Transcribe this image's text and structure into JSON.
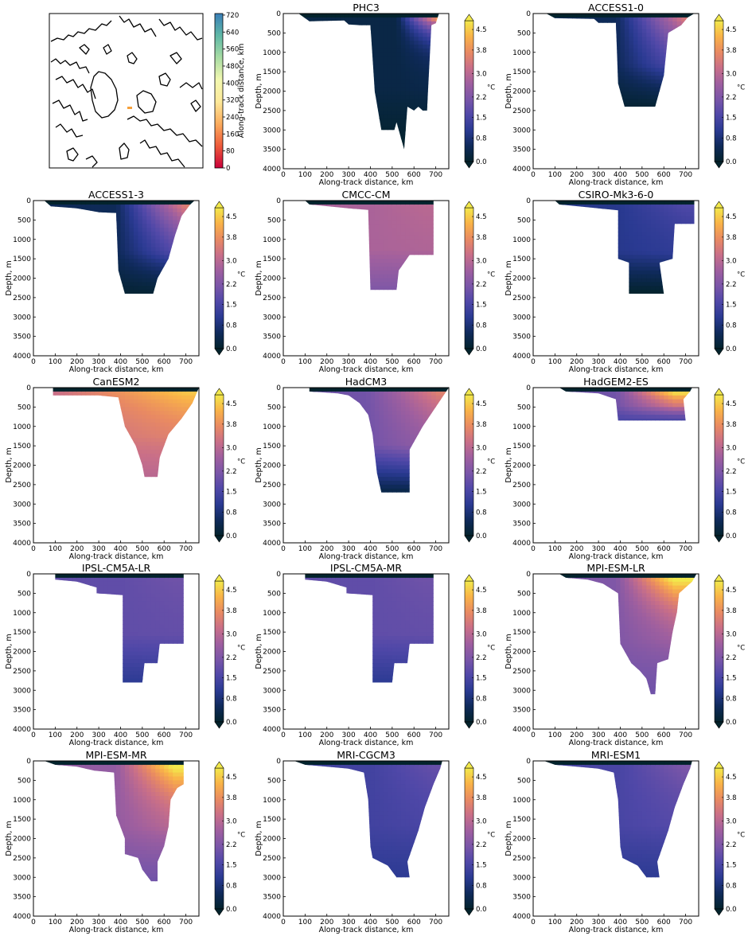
{
  "map_panel": {
    "colorbar_label": "Along-track distance, km",
    "colorbar_ticks": [
      "0",
      "80",
      "160",
      "240",
      "320",
      "400",
      "480",
      "560",
      "640",
      "720"
    ]
  },
  "colorbar": {
    "unit": "°C",
    "ticks": [
      "0.0",
      "0.8",
      "1.5",
      "2.2",
      "3.0",
      "3.8",
      "4.5"
    ],
    "colors": [
      "#03232c",
      "#0f2a5a",
      "#2a3a92",
      "#5048a8",
      "#7a56a8",
      "#9f5f9f",
      "#c96f88",
      "#e98a62",
      "#f9b348",
      "#f2e94c"
    ]
  },
  "axes": {
    "xlabel": "Along-track distance, km",
    "ylabel": "Depth, m",
    "xticks": [
      "0",
      "100",
      "200",
      "300",
      "400",
      "500",
      "600",
      "700"
    ],
    "yticks": [
      "0",
      "500",
      "1000",
      "1500",
      "2000",
      "2500",
      "3000",
      "3500",
      "4000"
    ]
  },
  "chart_data": [
    {
      "type": "heatmap",
      "title": "PHC3",
      "xlim": [
        0,
        760
      ],
      "ylim": [
        4000,
        0
      ],
      "max_depth": 3500,
      "profile": [
        [
          70,
          0
        ],
        [
          120,
          200
        ],
        [
          280,
          180
        ],
        [
          300,
          280
        ],
        [
          350,
          300
        ],
        [
          400,
          300
        ],
        [
          420,
          2000
        ],
        [
          450,
          3000
        ],
        [
          510,
          3000
        ],
        [
          520,
          2800
        ],
        [
          555,
          3500
        ],
        [
          570,
          2400
        ],
        [
          600,
          2500
        ],
        [
          620,
          2400
        ],
        [
          640,
          2500
        ],
        [
          660,
          2500
        ],
        [
          680,
          300
        ],
        [
          700,
          250
        ],
        [
          715,
          0
        ]
      ],
      "warm": {
        "x0": 520,
        "d0": 0.3,
        "xc": 710,
        "top": 4.2,
        "depth": 450
      },
      "deep_value": 0.0
    },
    {
      "type": "heatmap",
      "title": "ACCESS1-0",
      "xlim": [
        0,
        760
      ],
      "ylim": [
        4000,
        0
      ],
      "max_depth": 2400,
      "profile": [
        [
          60,
          0
        ],
        [
          100,
          120
        ],
        [
          280,
          140
        ],
        [
          300,
          240
        ],
        [
          380,
          240
        ],
        [
          390,
          1800
        ],
        [
          420,
          2400
        ],
        [
          560,
          2400
        ],
        [
          600,
          1600
        ],
        [
          620,
          500
        ],
        [
          680,
          300
        ],
        [
          710,
          100
        ],
        [
          740,
          0
        ]
      ],
      "warm": {
        "x0": 380,
        "d0": 0.5,
        "xc": 700,
        "top": 3.5,
        "depth": 1500
      },
      "deep_value": 0.1
    },
    {
      "type": "heatmap",
      "title": "ACCESS1-3",
      "xlim": [
        0,
        760
      ],
      "ylim": [
        4000,
        0
      ],
      "max_depth": 2400,
      "profile": [
        [
          50,
          0
        ],
        [
          80,
          150
        ],
        [
          200,
          200
        ],
        [
          300,
          300
        ],
        [
          380,
          320
        ],
        [
          390,
          1800
        ],
        [
          420,
          2400
        ],
        [
          550,
          2400
        ],
        [
          570,
          2000
        ],
        [
          620,
          1500
        ],
        [
          650,
          900
        ],
        [
          680,
          400
        ],
        [
          720,
          100
        ],
        [
          740,
          0
        ]
      ],
      "warm": {
        "x0": 380,
        "d0": 0.5,
        "xc": 700,
        "top": 3.6,
        "depth": 1500
      },
      "deep_value": 0.1
    },
    {
      "type": "heatmap",
      "title": "CMCC-CM",
      "xlim": [
        0,
        760
      ],
      "ylim": [
        4000,
        0
      ],
      "max_depth": 2300,
      "profile": [
        [
          100,
          0
        ],
        [
          120,
          100
        ],
        [
          300,
          200
        ],
        [
          390,
          240
        ],
        [
          400,
          2300
        ],
        [
          520,
          2300
        ],
        [
          530,
          1800
        ],
        [
          580,
          1400
        ],
        [
          690,
          1400
        ],
        [
          690,
          0
        ]
      ],
      "warm": {
        "x0": 400,
        "d0": 2.8,
        "xc": 650,
        "top": 3.0,
        "depth": 1000
      },
      "deep_value": 2.2
    },
    {
      "type": "heatmap",
      "title": "CSIRO-Mk3-6-0",
      "xlim": [
        0,
        760
      ],
      "ylim": [
        4000,
        0
      ],
      "max_depth": 2400,
      "profile": [
        [
          100,
          0
        ],
        [
          120,
          100
        ],
        [
          300,
          200
        ],
        [
          390,
          250
        ],
        [
          390,
          1500
        ],
        [
          440,
          1600
        ],
        [
          440,
          2400
        ],
        [
          600,
          2400
        ],
        [
          580,
          1600
        ],
        [
          640,
          1500
        ],
        [
          650,
          600
        ],
        [
          740,
          600
        ],
        [
          740,
          0
        ]
      ],
      "warm": {
        "x0": 380,
        "d0": 1.0,
        "xc": 700,
        "top": 1.6,
        "depth": 1000
      },
      "deep_value": 0.0
    },
    {
      "type": "heatmap",
      "title": "CanESM2",
      "xlim": [
        0,
        760
      ],
      "ylim": [
        4000,
        0
      ],
      "max_depth": 2300,
      "profile": [
        [
          90,
          0
        ],
        [
          90,
          200
        ],
        [
          300,
          200
        ],
        [
          390,
          250
        ],
        [
          420,
          1000
        ],
        [
          470,
          1500
        ],
        [
          500,
          2000
        ],
        [
          510,
          2300
        ],
        [
          570,
          2300
        ],
        [
          580,
          1800
        ],
        [
          620,
          1200
        ],
        [
          680,
          800
        ],
        [
          730,
          400
        ],
        [
          760,
          0
        ]
      ],
      "warm": {
        "x0": 100,
        "d0": 3.2,
        "xc": 700,
        "top": 4.5,
        "depth": 1000
      },
      "deep_value": 3.0
    },
    {
      "type": "heatmap",
      "title": "HadCM3",
      "xlim": [
        0,
        760
      ],
      "ylim": [
        4000,
        0
      ],
      "max_depth": 2700,
      "profile": [
        [
          120,
          0
        ],
        [
          120,
          100
        ],
        [
          250,
          150
        ],
        [
          300,
          200
        ],
        [
          350,
          400
        ],
        [
          390,
          700
        ],
        [
          410,
          1200
        ],
        [
          430,
          2200
        ],
        [
          450,
          2700
        ],
        [
          580,
          2700
        ],
        [
          580,
          1600
        ],
        [
          640,
          1000
        ],
        [
          700,
          500
        ],
        [
          760,
          0
        ]
      ],
      "warm": {
        "x0": 380,
        "d0": 2.0,
        "xc": 720,
        "top": 3.6,
        "depth": 1400
      },
      "deep_value": 0.3
    },
    {
      "type": "heatmap",
      "title": "HadGEM2-ES",
      "xlim": [
        0,
        760
      ],
      "ylim": [
        4000,
        0
      ],
      "max_depth": 850,
      "profile": [
        [
          120,
          0
        ],
        [
          150,
          100
        ],
        [
          300,
          150
        ],
        [
          380,
          300
        ],
        [
          390,
          850
        ],
        [
          700,
          850
        ],
        [
          690,
          300
        ],
        [
          720,
          100
        ],
        [
          730,
          0
        ]
      ],
      "warm": {
        "x0": 380,
        "d0": 2.0,
        "xc": 650,
        "top": 4.8,
        "depth": 500
      },
      "deep_value": 1.5
    },
    {
      "type": "heatmap",
      "title": "IPSL-CM5A-LR",
      "xlim": [
        0,
        760
      ],
      "ylim": [
        4000,
        0
      ],
      "max_depth": 2800,
      "profile": [
        [
          100,
          0
        ],
        [
          100,
          150
        ],
        [
          200,
          200
        ],
        [
          290,
          350
        ],
        [
          290,
          500
        ],
        [
          410,
          550
        ],
        [
          410,
          2800
        ],
        [
          500,
          2800
        ],
        [
          510,
          2300
        ],
        [
          570,
          2300
        ],
        [
          580,
          1800
        ],
        [
          690,
          1800
        ],
        [
          690,
          0
        ]
      ],
      "warm": {
        "x0": 400,
        "d0": 1.8,
        "xc": 650,
        "top": 2.0,
        "depth": 1000
      },
      "deep_value": 1.1
    },
    {
      "type": "heatmap",
      "title": "IPSL-CM5A-MR",
      "xlim": [
        0,
        760
      ],
      "ylim": [
        4000,
        0
      ],
      "max_depth": 2800,
      "profile": [
        [
          100,
          0
        ],
        [
          100,
          150
        ],
        [
          200,
          200
        ],
        [
          290,
          350
        ],
        [
          290,
          500
        ],
        [
          410,
          550
        ],
        [
          410,
          2800
        ],
        [
          500,
          2800
        ],
        [
          510,
          2300
        ],
        [
          570,
          2300
        ],
        [
          580,
          1800
        ],
        [
          690,
          1800
        ],
        [
          690,
          0
        ]
      ],
      "warm": {
        "x0": 400,
        "d0": 1.8,
        "xc": 650,
        "top": 2.0,
        "depth": 1000
      },
      "deep_value": 1.1
    },
    {
      "type": "heatmap",
      "title": "MPI-ESM-LR",
      "xlim": [
        0,
        760
      ],
      "ylim": [
        4000,
        0
      ],
      "max_depth": 3100,
      "profile": [
        [
          120,
          0
        ],
        [
          150,
          100
        ],
        [
          250,
          150
        ],
        [
          320,
          250
        ],
        [
          390,
          500
        ],
        [
          400,
          1800
        ],
        [
          450,
          2300
        ],
        [
          490,
          2500
        ],
        [
          520,
          2700
        ],
        [
          540,
          3100
        ],
        [
          560,
          3100
        ],
        [
          570,
          2300
        ],
        [
          620,
          2200
        ],
        [
          640,
          1500
        ],
        [
          660,
          1000
        ],
        [
          670,
          500
        ],
        [
          730,
          200
        ],
        [
          750,
          0
        ]
      ],
      "warm": {
        "x0": 380,
        "d0": 2.2,
        "xc": 650,
        "top": 5.0,
        "depth": 900
      },
      "deep_value": 2.0
    },
    {
      "type": "heatmap",
      "title": "MPI-ESM-MR",
      "xlim": [
        0,
        760
      ],
      "ylim": [
        4000,
        0
      ],
      "max_depth": 3100,
      "profile": [
        [
          50,
          0
        ],
        [
          100,
          100
        ],
        [
          200,
          150
        ],
        [
          280,
          250
        ],
        [
          370,
          300
        ],
        [
          380,
          1400
        ],
        [
          420,
          2000
        ],
        [
          420,
          2400
        ],
        [
          480,
          2500
        ],
        [
          500,
          2800
        ],
        [
          540,
          3100
        ],
        [
          570,
          3100
        ],
        [
          570,
          2600
        ],
        [
          600,
          2200
        ],
        [
          620,
          1700
        ],
        [
          630,
          1000
        ],
        [
          660,
          700
        ],
        [
          690,
          600
        ],
        [
          690,
          0
        ]
      ],
      "warm": {
        "x0": 380,
        "d0": 2.5,
        "xc": 650,
        "top": 5.0,
        "depth": 1000
      },
      "deep_value": 2.0
    },
    {
      "type": "heatmap",
      "title": "MRI-CGCM3",
      "xlim": [
        0,
        760
      ],
      "ylim": [
        4000,
        0
      ],
      "max_depth": 3000,
      "profile": [
        [
          50,
          0
        ],
        [
          100,
          100
        ],
        [
          200,
          150
        ],
        [
          300,
          200
        ],
        [
          370,
          300
        ],
        [
          390,
          1000
        ],
        [
          400,
          2200
        ],
        [
          410,
          2500
        ],
        [
          480,
          2700
        ],
        [
          520,
          3000
        ],
        [
          580,
          3000
        ],
        [
          570,
          2600
        ],
        [
          620,
          1800
        ],
        [
          650,
          1200
        ],
        [
          690,
          600
        ],
        [
          720,
          200
        ],
        [
          730,
          0
        ]
      ],
      "warm": {
        "x0": 400,
        "d0": 1.4,
        "xc": 700,
        "top": 1.9,
        "depth": 1200
      },
      "deep_value": 1.1
    },
    {
      "type": "heatmap",
      "title": "MRI-ESM1",
      "xlim": [
        0,
        760
      ],
      "ylim": [
        4000,
        0
      ],
      "max_depth": 3000,
      "profile": [
        [
          50,
          0
        ],
        [
          100,
          100
        ],
        [
          200,
          150
        ],
        [
          300,
          200
        ],
        [
          370,
          300
        ],
        [
          390,
          1000
        ],
        [
          400,
          2200
        ],
        [
          410,
          2500
        ],
        [
          480,
          2700
        ],
        [
          520,
          3000
        ],
        [
          580,
          3000
        ],
        [
          570,
          2600
        ],
        [
          620,
          1800
        ],
        [
          650,
          1200
        ],
        [
          690,
          600
        ],
        [
          720,
          200
        ],
        [
          730,
          0
        ]
      ],
      "warm": {
        "x0": 400,
        "d0": 1.5,
        "xc": 700,
        "top": 2.2,
        "depth": 1200
      },
      "deep_value": 1.1
    }
  ]
}
